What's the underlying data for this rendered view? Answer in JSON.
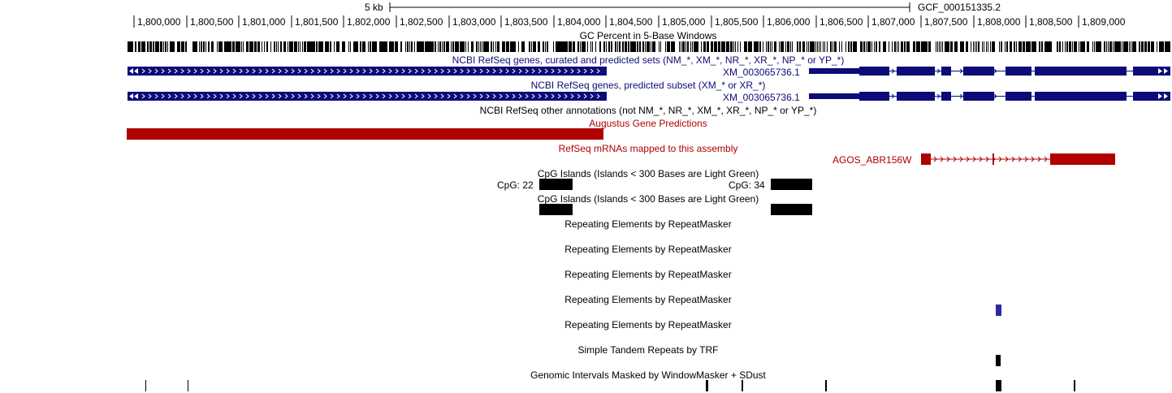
{
  "scale": {
    "label": "5 kb",
    "assembly": "GCF_000151335.2"
  },
  "ruler": {
    "ticks": [
      "1,800,000",
      "1,800,500",
      "1,801,000",
      "1,801,500",
      "1,802,000",
      "1,802,500",
      "1,803,000",
      "1,803,500",
      "1,804,000",
      "1,804,500",
      "1,805,000",
      "1,805,500",
      "1,806,000",
      "1,806,500",
      "1,807,000",
      "1,807,500",
      "1,808,000",
      "1,808,500",
      "1,809,000"
    ]
  },
  "tracks": {
    "gc_percent": "GC Percent in 5-Base Windows",
    "refseq_curated": "NCBI RefSeq genes, curated and predicted sets (NM_*, XM_*, NR_*, XR_*, NP_* or YP_*)",
    "refseq_curated_gene": "XM_003065736.1",
    "refseq_predicted": "NCBI RefSeq genes, predicted subset (XM_* or XR_*)",
    "refseq_predicted_gene": "XM_003065736.1",
    "refseq_other": "NCBI RefSeq other annotations (not NM_*, NR_*, XM_*, XR_*, NP_* or YP_*)",
    "augustus": "Augustus Gene Predictions",
    "refseq_mrna": "RefSeq mRNAs mapped to this assembly",
    "refseq_mrna_gene": "AGOS_ABR156W",
    "cpg1": "CpG Islands (Islands < 300 Bases are Light Green)",
    "cpg1_left": "CpG: 22",
    "cpg1_right": "CpG: 34",
    "cpg2": "CpG Islands (Islands < 300 Bases are Light Green)",
    "repeat1": "Repeating Elements by RepeatMasker",
    "repeat2": "Repeating Elements by RepeatMasker",
    "repeat3": "Repeating Elements by RepeatMasker",
    "repeat4": "Repeating Elements by RepeatMasker",
    "repeat5": "Repeating Elements by RepeatMasker",
    "trf": "Simple Tandem Repeats by TRF",
    "windowmasker": "Genomic Intervals Masked by WindowMasker + SDust"
  },
  "colors": {
    "navy": "#0c0c78",
    "red": "#b00000",
    "repeat_blue": "#2a2a9a"
  }
}
